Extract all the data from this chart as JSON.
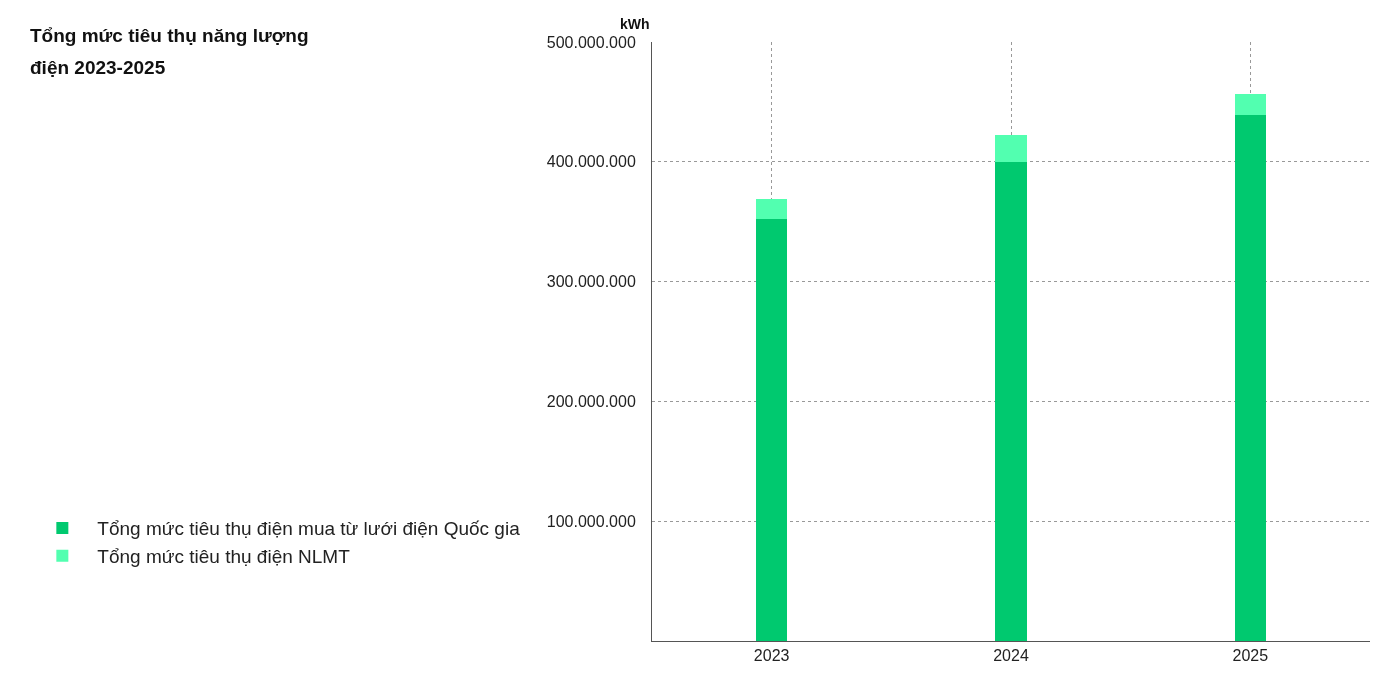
{
  "chart_data": {
    "type": "bar",
    "title": "Tổng mức tiêu thụ năng lượng điện 2023-2025",
    "ylabel": "kWh",
    "categories": [
      "2023",
      "2024",
      "2025"
    ],
    "stacked": true,
    "series": [
      {
        "name": "Tổng mức tiêu thụ điện mua từ lưới điện Quốc gia",
        "color": "#00c96f",
        "values": [
          352000000,
          400000000,
          439000000
        ]
      },
      {
        "name": "Tổng mức tiêu thụ điện NLMT",
        "color": "#52ffb0",
        "values": [
          17000000,
          22000000,
          18000000
        ]
      }
    ],
    "ylim": [
      0,
      500000000
    ],
    "yticks": [
      {
        "value": 0,
        "label": null
      },
      {
        "value": 100000000,
        "label": "100.000.000"
      },
      {
        "value": 200000000,
        "label": "200.000.000"
      },
      {
        "value": 300000000,
        "label": "300.000.000"
      },
      {
        "value": 400000000,
        "label": "400.000.000"
      },
      {
        "value": 500000000,
        "label": "500.000.000"
      }
    ],
    "grid": true,
    "legend": "bottom left"
  }
}
